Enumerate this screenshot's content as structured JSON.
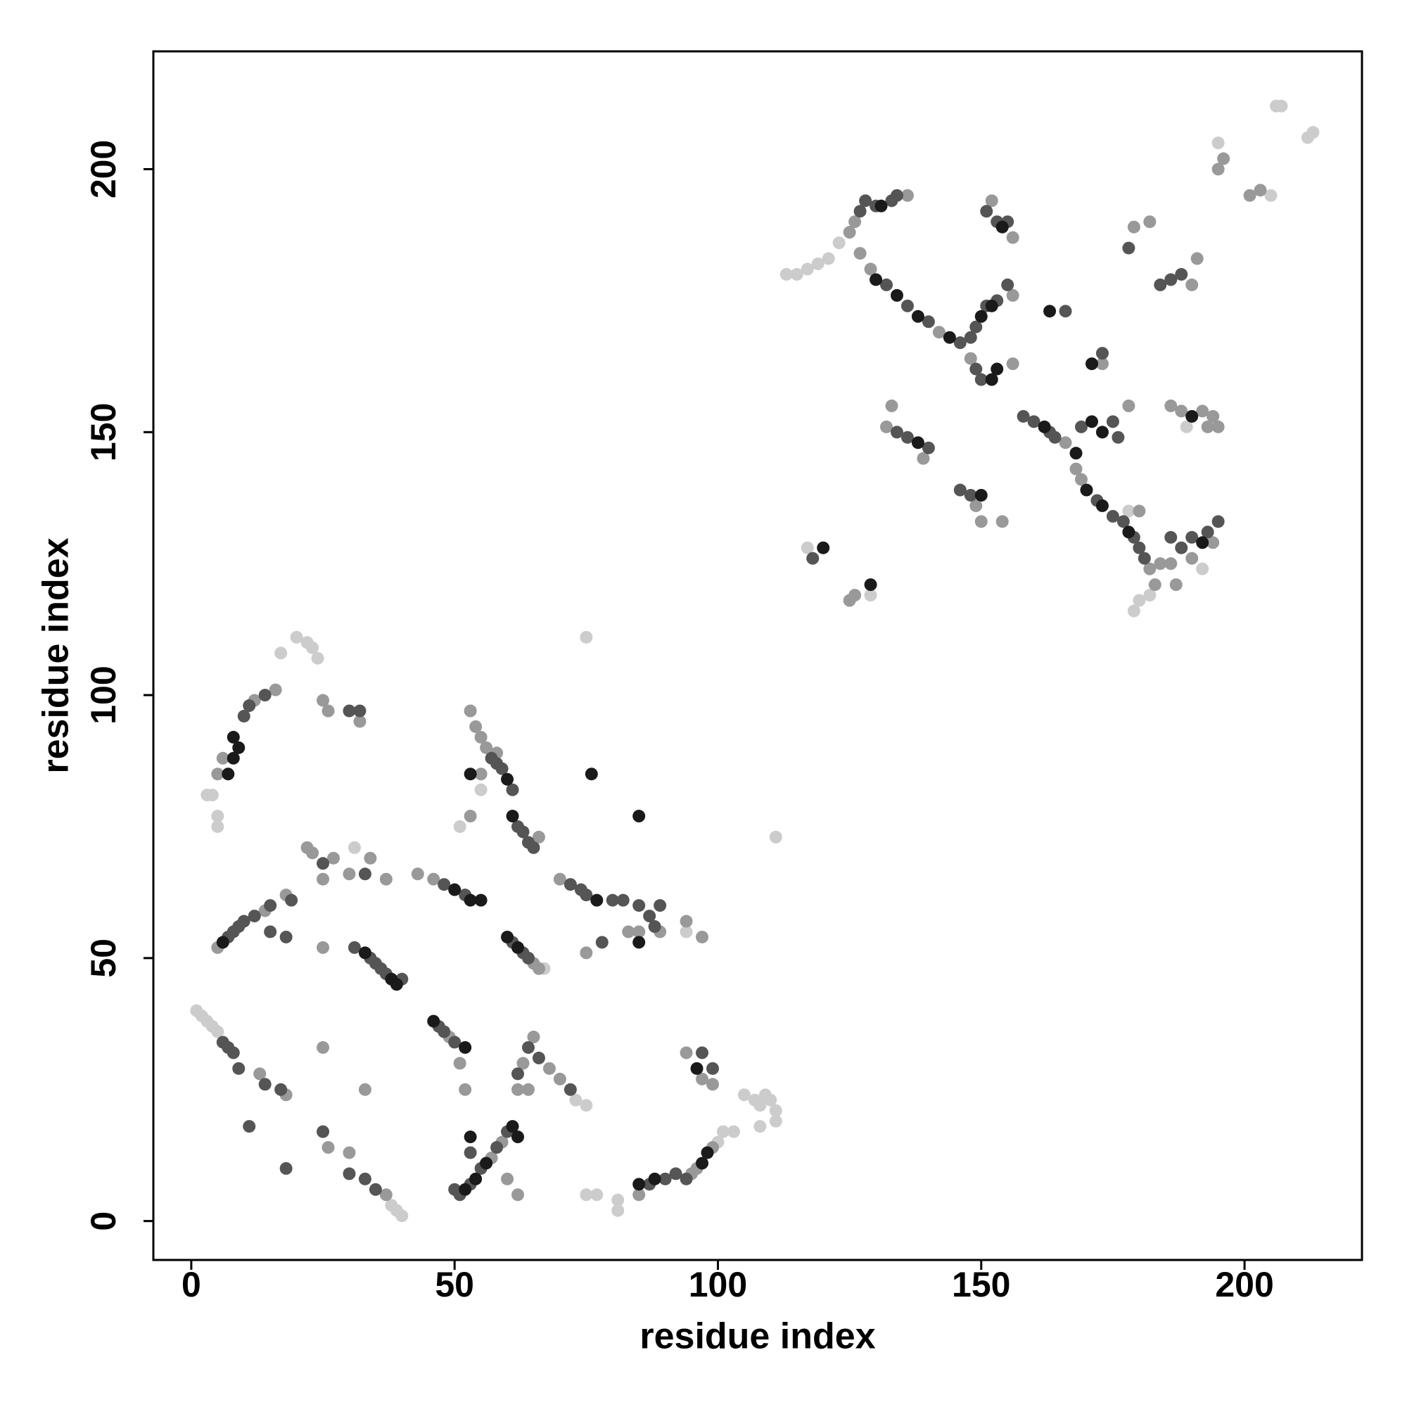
{
  "chart_data": {
    "type": "scatter",
    "x_label": "residue index",
    "y_label": "residue index",
    "xlim": [
      -7.2,
      222.3
    ],
    "ylim": [
      -7.4,
      222.4
    ],
    "xticks": [
      0,
      50,
      100,
      150,
      200
    ],
    "yticks": [
      0,
      50,
      100,
      150,
      200
    ],
    "grid": false,
    "series": [
      {
        "color": "#cccccc",
        "x": [
          1,
          2,
          3,
          4,
          5,
          38,
          39,
          40,
          3,
          4,
          5,
          5,
          17,
          20,
          22,
          23,
          24,
          31,
          51,
          55,
          67,
          73,
          75,
          72,
          75,
          111,
          75,
          77,
          81,
          81,
          100,
          101,
          103,
          94,
          105,
          107,
          108,
          109,
          110,
          111,
          111,
          108,
          113,
          115,
          117,
          119,
          121,
          123,
          117,
          129,
          146,
          180,
          179,
          182,
          189,
          205,
          206,
          207,
          213,
          212,
          195,
          178,
          192,
          184,
          138
        ],
        "y": [
          40,
          39,
          38,
          37,
          36,
          3,
          2,
          1,
          81,
          81,
          77,
          75,
          108,
          111,
          110,
          109,
          107,
          71,
          75,
          82,
          48,
          23,
          22,
          64,
          111,
          73,
          5,
          5,
          2,
          4,
          15,
          17,
          17,
          55,
          24,
          23,
          22,
          24,
          23,
          21,
          19,
          18,
          180,
          180,
          181,
          182,
          183,
          186,
          128,
          119,
          167,
          118,
          116,
          119,
          151,
          195,
          212,
          212,
          207,
          206,
          205,
          135,
          124,
          178,
          172
        ]
      },
      {
        "color": "#999999",
        "x": [
          13,
          18,
          26,
          30,
          37,
          5,
          6,
          12,
          16,
          5,
          14,
          18,
          22,
          23,
          25,
          27,
          30,
          34,
          37,
          25,
          49,
          51,
          52,
          43,
          46,
          53,
          54,
          55,
          56,
          58,
          55,
          53,
          66,
          65,
          66,
          57,
          59,
          63,
          65,
          68,
          70,
          62,
          64,
          60,
          62,
          70,
          83,
          89,
          85,
          75,
          97,
          94,
          85,
          95,
          96,
          99,
          94,
          97,
          99,
          33,
          25,
          25,
          26,
          32,
          125,
          126,
          127,
          129,
          136,
          142,
          156,
          148,
          156,
          152,
          156,
          166,
          168,
          169,
          182,
          183,
          173,
          178,
          132,
          139,
          133,
          149,
          150,
          154,
          125,
          126,
          180,
          194,
          190,
          186,
          184,
          187,
          179,
          182,
          190,
          191,
          186,
          188,
          192,
          194,
          195,
          193,
          196,
          201,
          203,
          195
        ],
        "y": [
          28,
          24,
          14,
          13,
          5,
          85,
          88,
          99,
          101,
          52,
          59,
          62,
          71,
          70,
          65,
          69,
          66,
          69,
          65,
          52,
          35,
          30,
          25,
          66,
          65,
          97,
          94,
          92,
          90,
          89,
          85,
          77,
          73,
          49,
          48,
          12,
          15,
          30,
          35,
          29,
          27,
          25,
          25,
          8,
          5,
          65,
          55,
          55,
          55,
          51,
          54,
          57,
          5,
          9,
          10,
          14,
          32,
          27,
          26,
          25,
          33,
          99,
          97,
          95,
          188,
          190,
          184,
          181,
          195,
          169,
          176,
          164,
          163,
          194,
          187,
          148,
          143,
          141,
          124,
          121,
          163,
          155,
          151,
          145,
          155,
          136,
          133,
          133,
          118,
          119,
          135,
          129,
          126,
          125,
          125,
          121,
          189,
          190,
          178,
          183,
          155,
          154,
          154,
          153,
          151,
          151,
          202,
          195,
          196,
          200
        ]
      },
      {
        "color": "#555555",
        "x": [
          6,
          7,
          8,
          9,
          14,
          17,
          25,
          30,
          33,
          35,
          10,
          11,
          14,
          7,
          8,
          9,
          10,
          12,
          15,
          19,
          18,
          15,
          25,
          33,
          31,
          34,
          35,
          36,
          37,
          40,
          47,
          48,
          50,
          48,
          52,
          57,
          58,
          59,
          61,
          62,
          63,
          64,
          65,
          61,
          63,
          64,
          50,
          51,
          53,
          55,
          58,
          60,
          53,
          64,
          66,
          72,
          62,
          72,
          74,
          75,
          80,
          82,
          85,
          87,
          88,
          89,
          78,
          87,
          90,
          92,
          94,
          99,
          97,
          11,
          18,
          30,
          32,
          127,
          128,
          130,
          133,
          134,
          132,
          136,
          140,
          146,
          148,
          149,
          151,
          153,
          155,
          149,
          150,
          151,
          153,
          155,
          158,
          160,
          163,
          164,
          172,
          175,
          177,
          179,
          180,
          181,
          166,
          173,
          169,
          175,
          176,
          134,
          136,
          140,
          146,
          148,
          186,
          188,
          190,
          193,
          195,
          178,
          184,
          186,
          188,
          118
        ],
        "y": [
          34,
          33,
          32,
          29,
          26,
          25,
          17,
          9,
          8,
          6,
          96,
          98,
          100,
          54,
          55,
          56,
          57,
          58,
          60,
          61,
          54,
          55,
          68,
          66,
          52,
          50,
          49,
          48,
          47,
          46,
          37,
          36,
          34,
          64,
          62,
          88,
          87,
          86,
          82,
          75,
          74,
          72,
          71,
          53,
          51,
          50,
          6,
          5,
          7,
          10,
          14,
          17,
          13,
          33,
          31,
          25,
          28,
          64,
          63,
          62,
          61,
          61,
          60,
          58,
          56,
          60,
          53,
          7,
          8,
          9,
          8,
          29,
          32,
          18,
          10,
          97,
          97,
          192,
          194,
          193,
          194,
          195,
          178,
          174,
          171,
          167,
          168,
          170,
          174,
          175,
          178,
          162,
          160,
          192,
          190,
          190,
          153,
          152,
          150,
          149,
          137,
          134,
          133,
          130,
          128,
          126,
          173,
          165,
          151,
          152,
          149,
          150,
          149,
          147,
          139,
          138,
          130,
          128,
          130,
          131,
          133,
          185,
          178,
          179,
          180,
          126
        ]
      },
      {
        "color": "#1a1a1a",
        "x": [
          7,
          8,
          9,
          8,
          33,
          38,
          39,
          52,
          53,
          55,
          53,
          60,
          61,
          60,
          62,
          52,
          54,
          53,
          56,
          61,
          62,
          77,
          85,
          76,
          85,
          85,
          88,
          97,
          98,
          96,
          130,
          138,
          144,
          150,
          152,
          153,
          152,
          154,
          162,
          168,
          170,
          173,
          178,
          171,
          163,
          171,
          173,
          138,
          150,
          120,
          129,
          190,
          192,
          131,
          134,
          6,
          46,
          50
        ],
        "y": [
          85,
          88,
          90,
          92,
          51,
          46,
          45,
          33,
          61,
          61,
          85,
          84,
          77,
          54,
          52,
          6,
          8,
          16,
          11,
          18,
          16,
          61,
          53,
          85,
          77,
          7,
          8,
          11,
          13,
          29,
          179,
          172,
          168,
          172,
          174,
          162,
          160,
          189,
          151,
          146,
          139,
          136,
          131,
          163,
          173,
          152,
          150,
          148,
          138,
          128,
          121,
          153,
          129,
          193,
          176,
          53,
          38,
          63
        ]
      }
    ]
  }
}
